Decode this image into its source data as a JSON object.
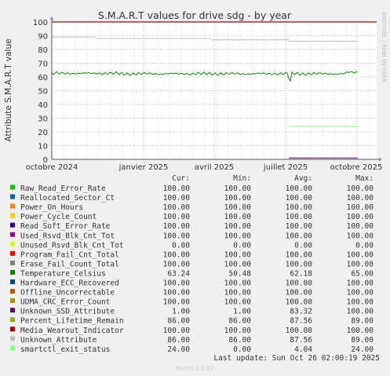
{
  "chart_data": {
    "type": "line",
    "title": "S.M.A.R.T values for drive sdg - by year",
    "ylabel": "Attribute S.M.A.R.T value",
    "watermark": "RRDTOOL / TOBI OETIKER",
    "ylim": [
      0,
      100
    ],
    "yticks": [
      0,
      10,
      20,
      30,
      40,
      50,
      60,
      70,
      80,
      90,
      100
    ],
    "xticks": [
      "octobre 2024",
      "janvier 2025",
      "avril 2025",
      "juillet 2025",
      "octobre 2025"
    ],
    "grid": true,
    "series": [
      {
        "name": "Raw_Read_Error_Rate",
        "color": "#00cc00",
        "cur": "100.00",
        "min": "100.00",
        "avg": "100.00",
        "max": "100.00"
      },
      {
        "name": "Reallocated_Sector_Ct",
        "color": "#0066b3",
        "cur": "100.00",
        "min": "100.00",
        "avg": "100.00",
        "max": "100.00"
      },
      {
        "name": "Power_On_Hours",
        "color": "#ff8000",
        "cur": "100.00",
        "min": "100.00",
        "avg": "100.00",
        "max": "100.00"
      },
      {
        "name": "Power_Cycle_Count",
        "color": "#ffcc00",
        "cur": "100.00",
        "min": "100.00",
        "avg": "100.00",
        "max": "100.00"
      },
      {
        "name": "Read_Soft_Error_Rate",
        "color": "#330099",
        "cur": "100.00",
        "min": "100.00",
        "avg": "100.00",
        "max": "100.00"
      },
      {
        "name": "Used_Rsvd_Blk_Cnt_Tot",
        "color": "#990099",
        "cur": "100.00",
        "min": "100.00",
        "avg": "100.00",
        "max": "100.00"
      },
      {
        "name": "Unused_Rsvd_Blk_Cnt_Tot",
        "color": "#ccff00",
        "cur": "0.00",
        "min": "0.00",
        "avg": "0.00",
        "max": "0.00"
      },
      {
        "name": "Program_Fail_Cnt_Total",
        "color": "#ff0000",
        "cur": "100.00",
        "min": "100.00",
        "avg": "100.00",
        "max": "100.00"
      },
      {
        "name": "Erase_Fail_Count_Total",
        "color": "#808080",
        "cur": "100.00",
        "min": "100.00",
        "avg": "100.00",
        "max": "100.00"
      },
      {
        "name": "Temperature_Celsius",
        "color": "#008f00",
        "cur": "63.24",
        "min": "50.48",
        "avg": "62.18",
        "max": "65.00"
      },
      {
        "name": "Hardware_ECC_Recovered",
        "color": "#00487d",
        "cur": "100.00",
        "min": "100.00",
        "avg": "100.00",
        "max": "100.00"
      },
      {
        "name": "Offline_Uncorrectable",
        "color": "#b35a00",
        "cur": "100.00",
        "min": "100.00",
        "avg": "100.00",
        "max": "100.00"
      },
      {
        "name": "UDMA_CRC_Error_Count",
        "color": "#b38f00",
        "cur": "100.00",
        "min": "100.00",
        "avg": "100.00",
        "max": "100.00"
      },
      {
        "name": "Unknown_SSD_Attribute",
        "color": "#6b006b",
        "cur": "1.00",
        "min": "1.00",
        "avg": "83.32",
        "max": "100.00"
      },
      {
        "name": "Percent_Lifetime_Remain",
        "color": "#8fb300",
        "cur": "86.00",
        "min": "86.00",
        "avg": "87.56",
        "max": "89.00"
      },
      {
        "name": "Media_Wearout_Indicator",
        "color": "#b30000",
        "cur": "100.00",
        "min": "100.00",
        "avg": "100.00",
        "max": "100.00"
      },
      {
        "name": "Unknown_Attribute",
        "color": "#bebebe",
        "cur": "86.00",
        "min": "86.00",
        "avg": "87.56",
        "max": "89.00"
      },
      {
        "name": "smartctl_exit_status",
        "color": "#80ff80",
        "cur": "24.00",
        "min": "0.00",
        "avg": "4.04",
        "max": "24.00"
      }
    ]
  },
  "legend_headers": {
    "cur": "Cur:",
    "min": "Min:",
    "avg": "Avg:",
    "max": "Max:"
  },
  "footer": {
    "last_update": "Last update:  Sun Oct 26 02:00:19 2025",
    "munin": "Munin 2.0.67"
  }
}
